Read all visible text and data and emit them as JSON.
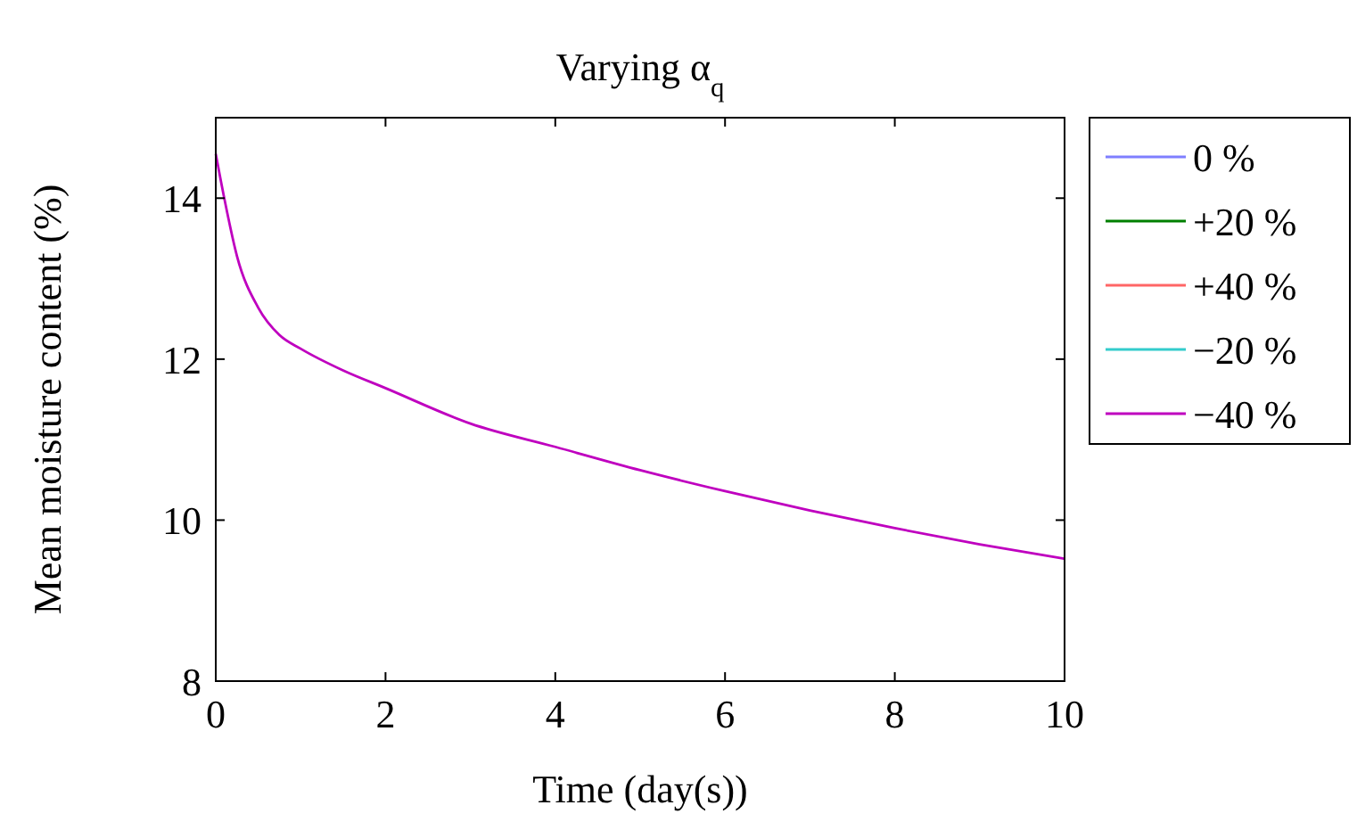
{
  "chart_data": {
    "type": "line",
    "title": "Varying α$_{q}$",
    "xlabel": "Time (day(s))",
    "ylabel": "Mean moisture content (%)",
    "x": [
      0,
      0.1,
      0.25,
      0.5,
      0.75,
      1,
      1.5,
      2,
      3,
      4,
      5,
      6,
      7,
      8,
      9,
      10
    ],
    "series": [
      {
        "name": "0 %",
        "color": "#7f7fff",
        "values": [
          null,
          null,
          null,
          null,
          null,
          null,
          null,
          null,
          null,
          null,
          null,
          null,
          null,
          null,
          null,
          null
        ]
      },
      {
        "name": "+20 %",
        "color": "#007f00",
        "values": [
          null,
          null,
          null,
          null,
          null,
          null,
          null,
          null,
          null,
          null,
          null,
          null,
          null,
          null,
          null,
          null
        ]
      },
      {
        "name": "+40 %",
        "color": "#ff6666",
        "values": [
          null,
          null,
          null,
          null,
          null,
          null,
          null,
          null,
          null,
          null,
          null,
          null,
          null,
          null,
          null,
          null
        ]
      },
      {
        "name": "−20 %",
        "color": "#33cccc",
        "values": [
          null,
          null,
          null,
          null,
          null,
          null,
          null,
          null,
          null,
          null,
          null,
          null,
          null,
          null,
          null,
          null
        ]
      },
      {
        "name": "−40 %",
        "color": "#bf00bf",
        "values": [
          14.55,
          14.0,
          13.28,
          12.64,
          12.3,
          12.13,
          11.86,
          11.64,
          11.2,
          10.91,
          10.62,
          10.36,
          10.12,
          9.9,
          9.7,
          9.52
        ]
      }
    ],
    "xlim": [
      0,
      10
    ],
    "xticks": [
      0,
      2,
      4,
      6,
      8,
      10
    ],
    "ylim": [
      8,
      15
    ],
    "yticks": [
      8,
      10,
      12,
      14
    ],
    "legend": "right",
    "marker": "none",
    "line_style": "solid"
  }
}
